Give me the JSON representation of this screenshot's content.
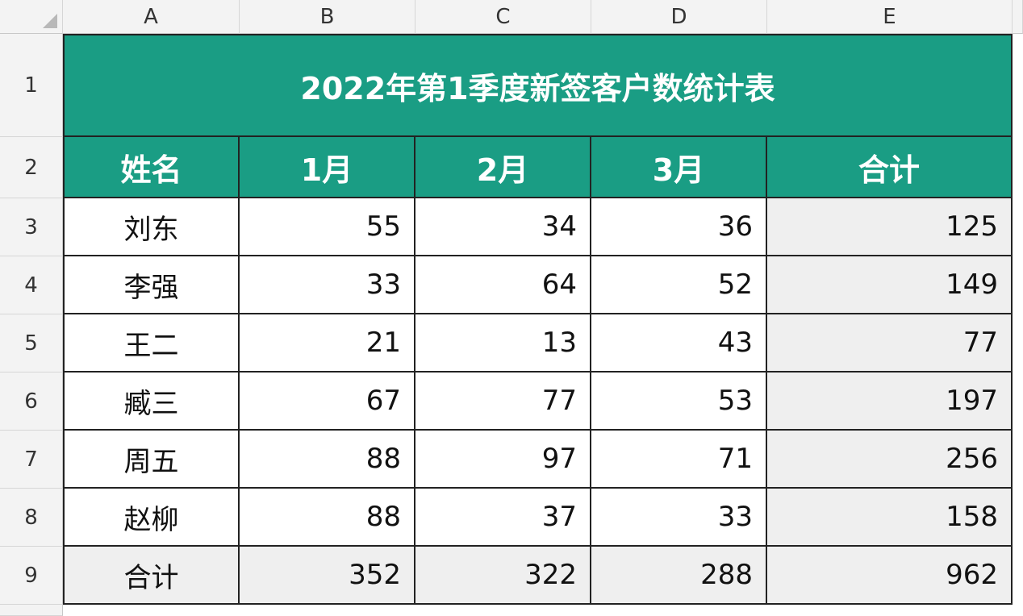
{
  "column_headers": [
    "A",
    "B",
    "C",
    "D",
    "E"
  ],
  "row_headers": [
    1,
    2,
    3,
    4,
    5,
    6,
    7,
    8,
    9
  ],
  "table": {
    "title": "2022年第1季度新签客户数统计表",
    "header": [
      "姓名",
      "1月",
      "2月",
      "3月",
      "合计"
    ],
    "rows": [
      [
        "刘东",
        55,
        34,
        36,
        125
      ],
      [
        "李强",
        33,
        64,
        52,
        149
      ],
      [
        "王二",
        21,
        13,
        43,
        77
      ],
      [
        "臧三",
        67,
        77,
        53,
        197
      ],
      [
        "周五",
        88,
        97,
        71,
        256
      ],
      [
        "赵柳",
        88,
        37,
        33,
        158
      ],
      [
        "合计",
        352,
        322,
        288,
        962
      ]
    ]
  }
}
